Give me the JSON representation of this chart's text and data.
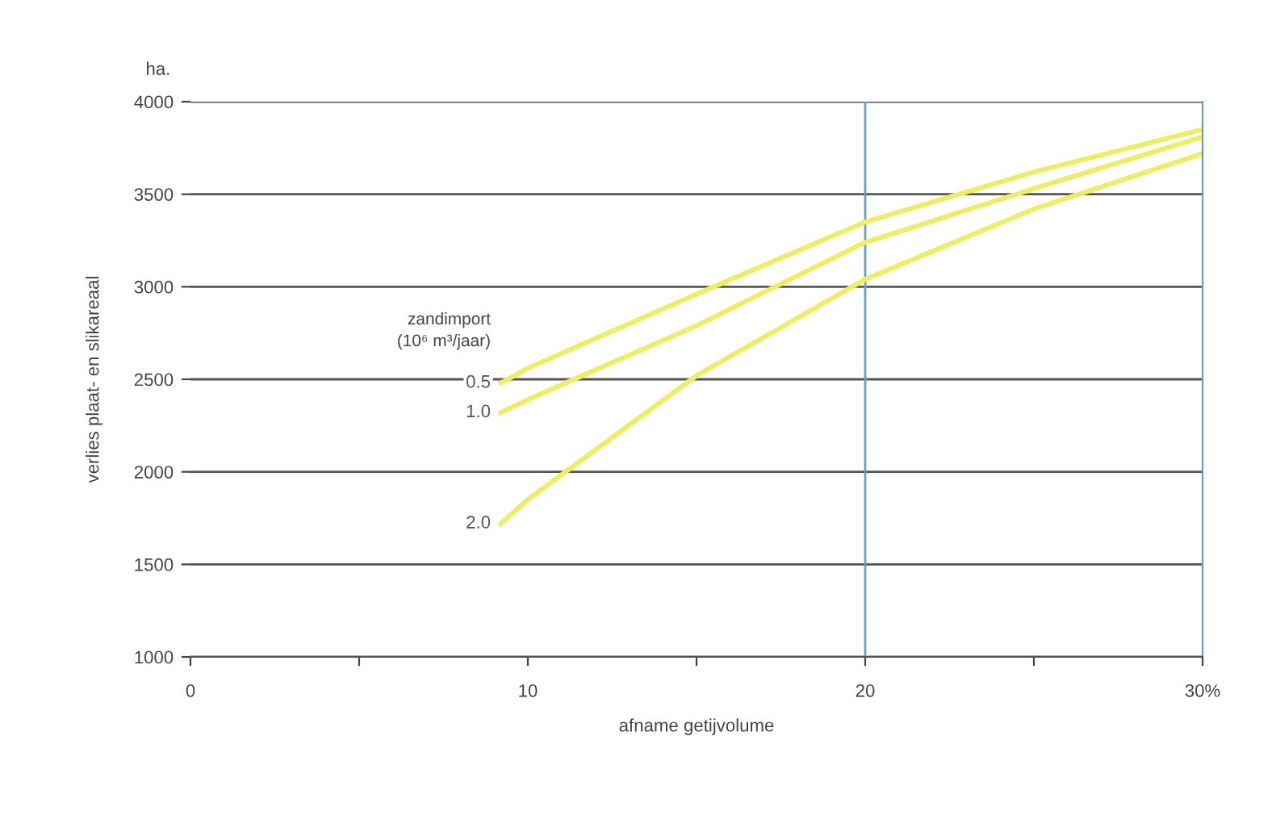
{
  "chart_data": {
    "type": "line",
    "xlabel": "afname getijvolume",
    "ylabel": "verlies plaat- en slikareaal",
    "legend_title": "zandimport\n(10⁶ m³/jaar)",
    "annotations": [
      "ha."
    ],
    "series": [
      {
        "name": "0.5",
        "color": "#eeee66",
        "x": [
          9.2,
          10,
          15,
          20,
          25,
          30
        ],
        "values": [
          2480,
          2560,
          2960,
          3350,
          3620,
          3850
        ]
      },
      {
        "name": "1.0",
        "color": "#eeee66",
        "x": [
          9.2,
          10,
          15,
          20,
          25,
          30
        ],
        "values": [
          2320,
          2390,
          2790,
          3240,
          3530,
          3810
        ]
      },
      {
        "name": "2.0",
        "color": "#eeee66",
        "x": [
          9.2,
          10,
          15,
          20,
          25,
          30
        ],
        "values": [
          1720,
          1850,
          2520,
          3040,
          3420,
          3720
        ]
      }
    ],
    "xlim": [
      0,
      30
    ],
    "xticks": [
      0,
      {
        "value": 5,
        "label": null
      },
      10,
      {
        "value": 15,
        "label": null
      },
      20,
      {
        "value": 25,
        "label": null
      },
      {
        "value": 30,
        "label": "30%"
      }
    ],
    "ylim": [
      1000,
      4000
    ],
    "yticks": [
      1000,
      1500,
      2000,
      2500,
      3000,
      3500,
      4000
    ],
    "grid": "y",
    "ref_lines": [
      {
        "axis": "x",
        "value": 20,
        "label": null,
        "color": "#6a9ec0"
      }
    ],
    "legend": "left",
    "line_style": "solid"
  }
}
